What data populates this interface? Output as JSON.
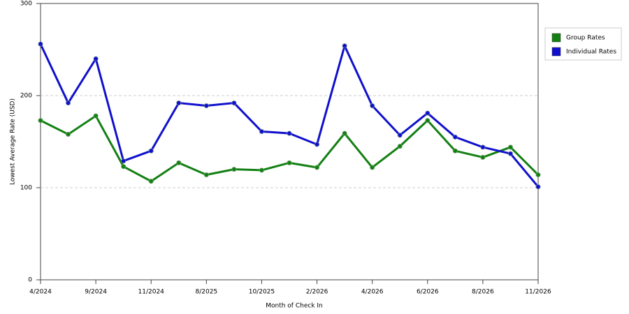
{
  "chart_data": {
    "type": "line",
    "x_label": "Month of Check In",
    "y_label": "Lowest Average Rate (USD)",
    "categories": [
      "4/2024",
      null,
      "9/2024",
      null,
      "11/2024",
      null,
      "8/2025",
      null,
      "10/2025",
      null,
      "2/2026",
      null,
      "4/2026",
      null,
      "6/2026",
      null,
      "8/2026",
      null,
      "11/2026"
    ],
    "series": [
      {
        "name": "Group Rates",
        "color": "#138013",
        "values": [
          173,
          158,
          178,
          123,
          107,
          127,
          114,
          120,
          119,
          127,
          122,
          159,
          122,
          145,
          173,
          140,
          133,
          144,
          114
        ]
      },
      {
        "name": "Individual Rates",
        "color": "#1010cc",
        "values": [
          256,
          192,
          240,
          129,
          140,
          192,
          189,
          192,
          161,
          159,
          147,
          254,
          189,
          157,
          181,
          155,
          144,
          137,
          101
        ]
      }
    ],
    "ylim": [
      0,
      300
    ],
    "yticks": [
      0,
      100,
      200,
      300
    ],
    "grid": true,
    "legend": "right"
  }
}
